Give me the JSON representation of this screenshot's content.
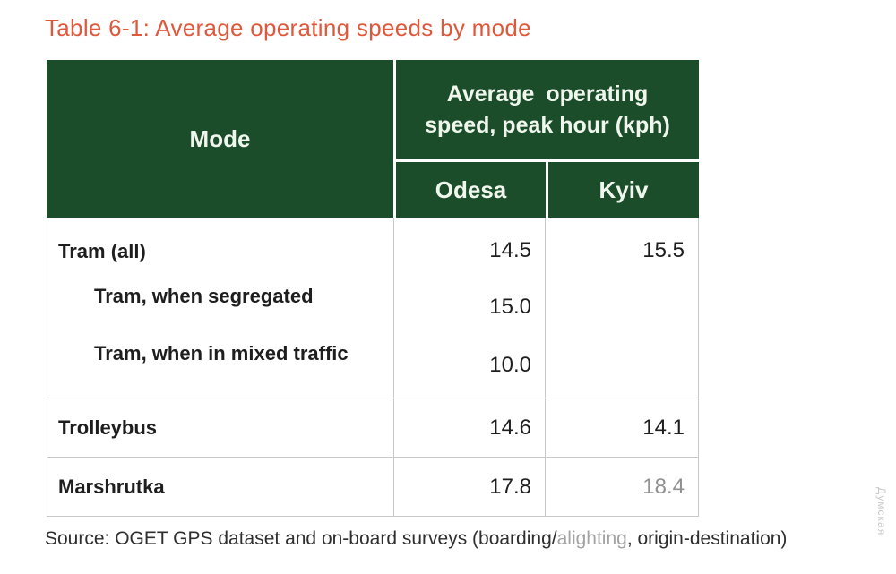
{
  "title": "Table 6-1: Average operating speeds by mode",
  "colors": {
    "header_green": "#1B4D2B",
    "title_orange": "#E0583C",
    "border_gray": "#C9C9C9",
    "text_dark": "#1E1E1E",
    "muted_number_gray": "#909090",
    "muted_source_gray": "#A3A3A3",
    "watermark_gray": "#C9C9C9"
  },
  "table": {
    "header": {
      "mode_label": "Mode",
      "speed_lines": [
        "Average operating",
        "speed, peak hour (kph)"
      ],
      "columns": [
        "Odesa",
        "Kyiv"
      ]
    },
    "tram_block": {
      "lines": [
        {
          "label": "Tram (all)",
          "indented": false,
          "odesa": "14.5",
          "kyiv": "15.5"
        },
        {
          "label": "Tram, when segregated",
          "indented": true,
          "odesa": "15.0",
          "kyiv": ""
        },
        {
          "label": "Tram, when in mixed traffic",
          "indented": true,
          "odesa": "10.0",
          "kyiv": ""
        }
      ]
    },
    "simple_rows": [
      {
        "label": "Trolleybus",
        "odesa": "14.6",
        "kyiv": "14.1",
        "kyiv_muted": false
      },
      {
        "label": "Marshrutka",
        "odesa": "17.8",
        "kyiv": "18.4",
        "kyiv_muted": true
      }
    ]
  },
  "source": {
    "prefix": "Source: OGET GPS dataset and on-board surveys (boarding/",
    "muted": "alighting",
    "suffix": ", origin-destination)"
  },
  "watermark": "Думская",
  "chart_data": {
    "type": "table",
    "title": "Table 6-1: Average operating speeds by mode",
    "columns": [
      "Mode",
      "Odesa",
      "Kyiv"
    ],
    "rows": [
      [
        "Tram (all)",
        14.5,
        15.5
      ],
      [
        "Tram, when segregated",
        15.0,
        null
      ],
      [
        "Tram, when in mixed traffic",
        10.0,
        null
      ],
      [
        "Trolleybus",
        14.6,
        14.1
      ],
      [
        "Marshrutka",
        17.8,
        18.4
      ]
    ],
    "units": "kph, average operating speed in peak hour"
  }
}
